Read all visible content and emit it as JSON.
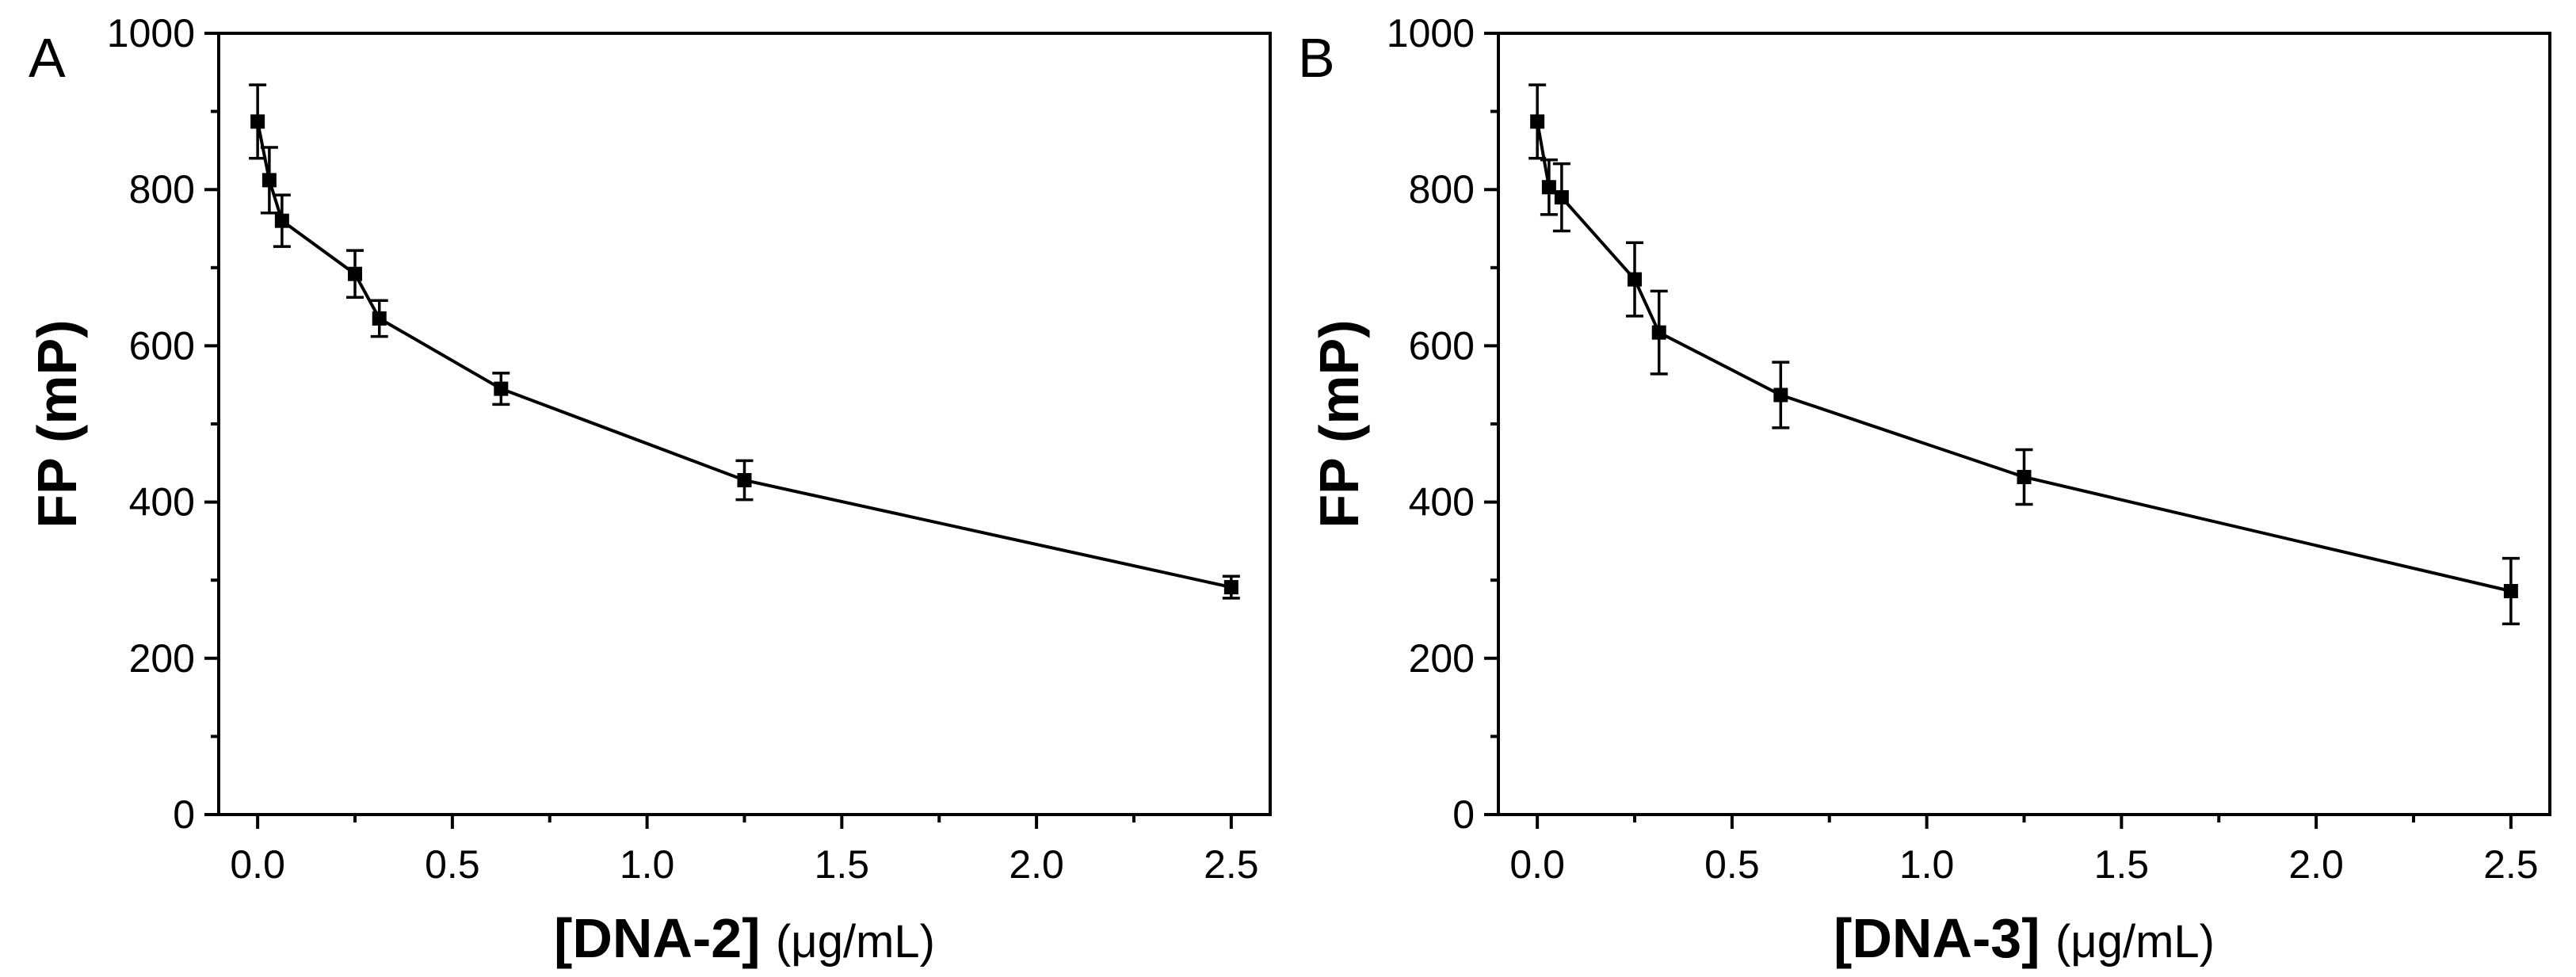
{
  "chart_data": [
    {
      "type": "line",
      "panel_label": "A",
      "xlabel": "[DNA-2]",
      "xunit": "(μg/mL)",
      "ylabel": "FP (mP)",
      "xlim": [
        -0.1,
        2.6
      ],
      "ylim": [
        0,
        1000
      ],
      "xticks": [
        0.0,
        0.5,
        1.0,
        1.5,
        2.0,
        2.5
      ],
      "xtick_labels": [
        "0.0",
        "0.5",
        "1.0",
        "1.5",
        "2.0",
        "2.5"
      ],
      "yticks": [
        0,
        200,
        400,
        600,
        800,
        1000
      ],
      "ytick_labels": [
        "0",
        "200",
        "400",
        "600",
        "800",
        "1000"
      ],
      "grid": false,
      "series": [
        {
          "name": "DNA-2",
          "x": [
            0.0,
            0.03,
            0.0625,
            0.25,
            0.3125,
            0.625,
            1.25,
            2.5
          ],
          "y": [
            887,
            812,
            760,
            692,
            635,
            545,
            428,
            291
          ],
          "error": [
            47,
            42,
            33,
            30,
            23,
            20,
            25,
            14
          ]
        }
      ]
    },
    {
      "type": "line",
      "panel_label": "B",
      "xlabel": "[DNA-3]",
      "xunit": "(μg/mL)",
      "ylabel": "FP (mP)",
      "xlim": [
        -0.1,
        2.6
      ],
      "ylim": [
        0,
        1000
      ],
      "xticks": [
        0.0,
        0.5,
        1.0,
        1.5,
        2.0,
        2.5
      ],
      "xtick_labels": [
        "0.0",
        "0.5",
        "1.0",
        "1.5",
        "2.0",
        "2.5"
      ],
      "yticks": [
        0,
        200,
        400,
        600,
        800,
        1000
      ],
      "ytick_labels": [
        "0",
        "200",
        "400",
        "600",
        "800",
        "1000"
      ],
      "grid": false,
      "series": [
        {
          "name": "DNA-3",
          "x": [
            0.0,
            0.03,
            0.0625,
            0.25,
            0.3125,
            0.625,
            1.25,
            2.5
          ],
          "y": [
            887,
            803,
            790,
            685,
            617,
            537,
            432,
            286
          ],
          "error": [
            47,
            35,
            43,
            47,
            53,
            42,
            35,
            42
          ]
        }
      ]
    }
  ]
}
